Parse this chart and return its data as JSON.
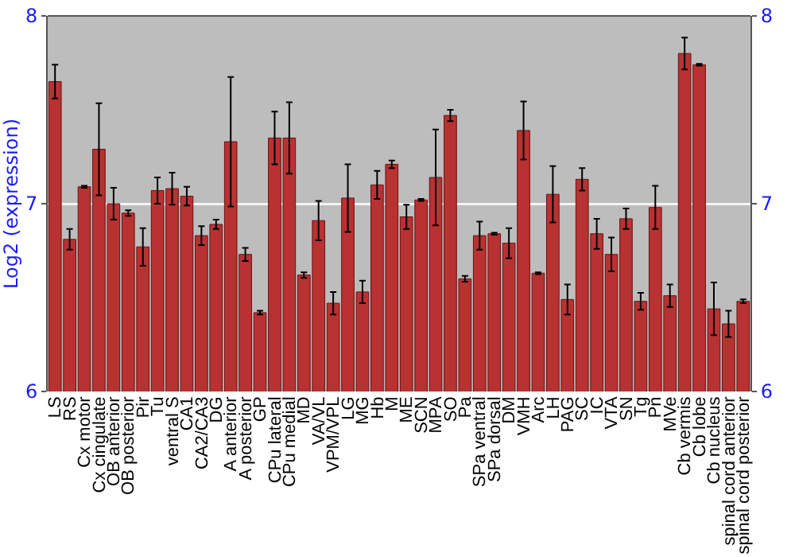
{
  "chart_data": {
    "type": "bar",
    "ylabel": "Log2 (expression)",
    "categories": [
      "LS",
      "RS",
      "Cx motor",
      "Cx cingulate",
      "OB anterior",
      "OB posterior",
      "Pir",
      "Tu",
      "ventral S",
      "CA1",
      "CA2/CA3",
      "DG",
      "A anterior",
      "A posterior",
      "GP",
      "CPu lateral",
      "CPu medial",
      "MD",
      "VA/VL",
      "VPM/VPL",
      "LG",
      "MG",
      "Hb",
      "M",
      "ME",
      "SCN",
      "MPA",
      "SO",
      "Pa",
      "SPa ventral",
      "SPa dorsal",
      "DM",
      "VMH",
      "Arc",
      "LH",
      "PAG",
      "SC",
      "IC",
      "VTA",
      "SN",
      "Tg",
      "Pn",
      "MVe",
      "Cb vermis",
      "Cb lobe",
      "Cb nucleus",
      "spinal cord anterior",
      "spinal cord posterior"
    ],
    "values": [
      7.65,
      6.81,
      7.09,
      7.29,
      7.0,
      6.95,
      6.77,
      7.07,
      7.08,
      7.04,
      6.83,
      6.89,
      7.33,
      6.73,
      6.42,
      7.35,
      7.35,
      6.62,
      6.91,
      6.47,
      7.03,
      6.53,
      7.1,
      7.21,
      6.93,
      7.02,
      7.14,
      7.47,
      6.6,
      6.83,
      6.84,
      6.79,
      7.39,
      6.63,
      7.05,
      6.49,
      7.13,
      6.84,
      6.73,
      6.92,
      6.48,
      6.98,
      6.51,
      7.8,
      7.74,
      6.44,
      6.36,
      6.48
    ],
    "errors": [
      0.09,
      0.055,
      0.005,
      0.245,
      0.085,
      0.015,
      0.1,
      0.07,
      0.085,
      0.05,
      0.05,
      0.025,
      0.345,
      0.035,
      0.01,
      0.14,
      0.19,
      0.015,
      0.105,
      0.06,
      0.18,
      0.06,
      0.075,
      0.02,
      0.065,
      0.005,
      0.255,
      0.03,
      0.015,
      0.075,
      0.005,
      0.08,
      0.155,
      0.005,
      0.15,
      0.08,
      0.06,
      0.08,
      0.09,
      0.055,
      0.045,
      0.115,
      0.06,
      0.085,
      0.005,
      0.14,
      0.07,
      0.01
    ],
    "color": "#b83232",
    "ylim": [
      6,
      8
    ],
    "yticks": [
      6,
      7,
      8
    ],
    "y2lim": [
      6,
      8
    ],
    "y2ticks": [
      6,
      7,
      8
    ],
    "grid": "y"
  }
}
